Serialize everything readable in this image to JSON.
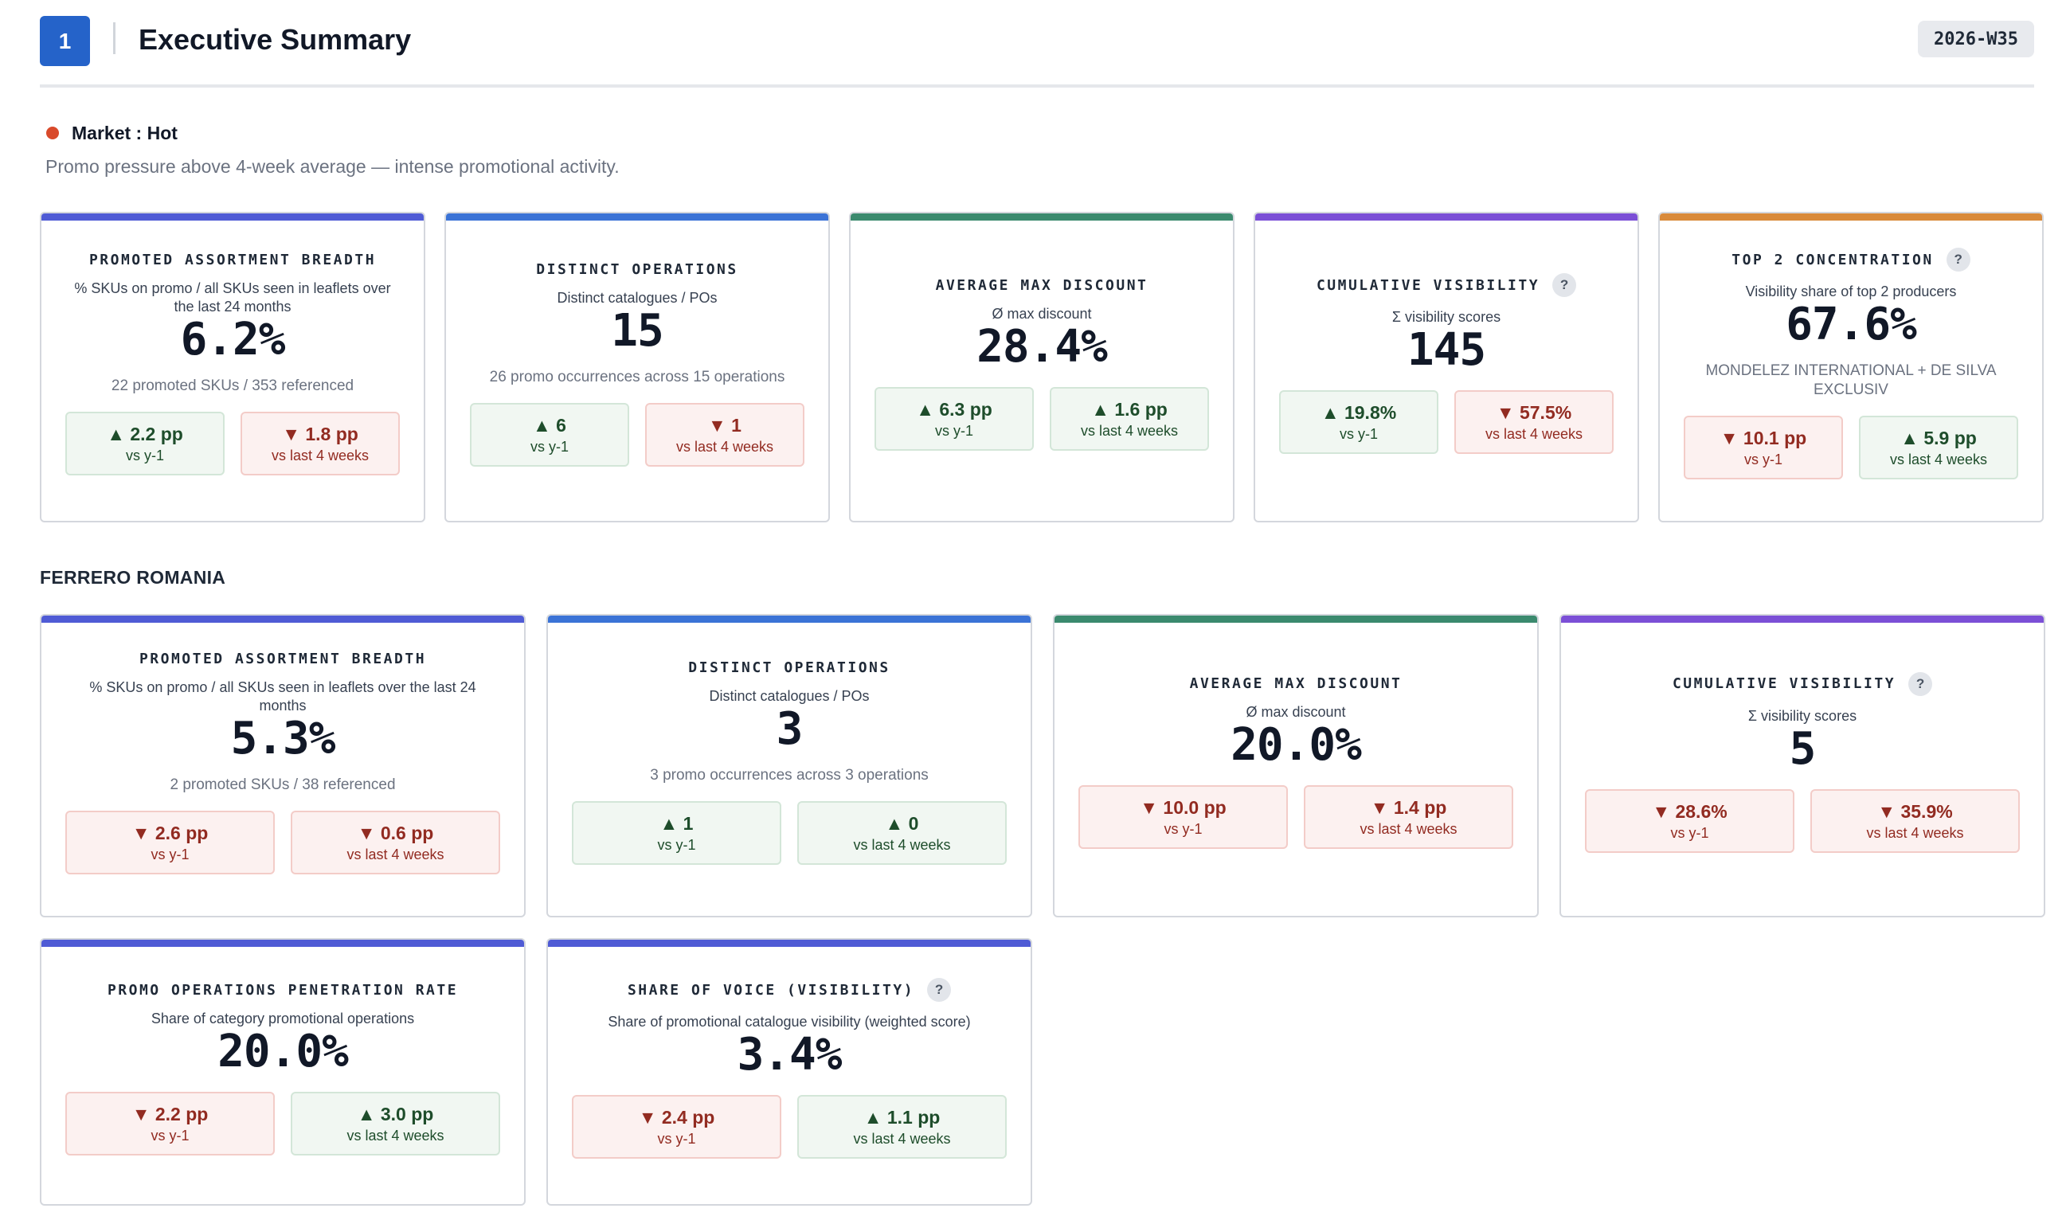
{
  "header": {
    "section_number": "1",
    "title": "Executive Summary",
    "week": "2026-W35"
  },
  "market": {
    "label": "Market : Hot",
    "status_color": "#d94a2b",
    "description": "Promo pressure above 4-week average — intense promotional activity."
  },
  "market_cards": [
    {
      "title": "PROMOTED ASSORTMENT BREADTH",
      "subtitle": "% SKUs on promo / all SKUs seen in leaflets over the last 24 months",
      "value": "6.2%",
      "note": "22 promoted SKUs / 353 referenced",
      "accent": "#4f5bd5",
      "deltas": [
        {
          "direction": "up",
          "value": "▲ 2.2 pp",
          "label": "vs y-1"
        },
        {
          "direction": "down",
          "value": "▼ 1.8 pp",
          "label": "vs last 4 weeks"
        }
      ]
    },
    {
      "title": "DISTINCT OPERATIONS",
      "subtitle": "Distinct catalogues / POs",
      "value": "15",
      "note": "26 promo occurrences across 15 operations",
      "accent": "#3b73d6",
      "deltas": [
        {
          "direction": "up",
          "value": "▲ 6",
          "label": "vs y-1"
        },
        {
          "direction": "down",
          "value": "▼ 1",
          "label": "vs last 4 weeks"
        }
      ]
    },
    {
      "title": "AVERAGE MAX DISCOUNT",
      "subtitle": "Ø max discount",
      "value": "28.4%",
      "note": "",
      "accent": "#3b8a6e",
      "deltas": [
        {
          "direction": "up",
          "value": "▲ 6.3 pp",
          "label": "vs y-1"
        },
        {
          "direction": "up",
          "value": "▲ 1.6 pp",
          "label": "vs last 4 weeks"
        }
      ]
    },
    {
      "title": "CUMULATIVE VISIBILITY",
      "help": "?",
      "subtitle": "Σ visibility scores",
      "value": "145",
      "note": "",
      "accent": "#7b4fd6",
      "deltas": [
        {
          "direction": "up",
          "value": "▲ 19.8%",
          "label": "vs y-1"
        },
        {
          "direction": "down",
          "value": "▼ 57.5%",
          "label": "vs last 4 weeks"
        }
      ]
    },
    {
      "title": "TOP 2 CONCENTRATION",
      "help": "?",
      "subtitle": "Visibility share of top 2 producers",
      "value": "67.6%",
      "note": "MONDELEZ INTERNATIONAL + DE SILVA EXCLUSIV",
      "accent": "#d98a3a",
      "deltas": [
        {
          "direction": "down",
          "value": "▼ 10.1 pp",
          "label": "vs y-1"
        },
        {
          "direction": "up",
          "value": "▲ 5.9 pp",
          "label": "vs last 4 weeks"
        }
      ]
    }
  ],
  "brand_section": {
    "title": "FERRERO ROMANIA"
  },
  "brand_cards": [
    {
      "title": "PROMOTED ASSORTMENT BREADTH",
      "subtitle": "% SKUs on promo / all SKUs seen in leaflets over the last 24 months",
      "value": "5.3%",
      "note": "2 promoted SKUs / 38 referenced",
      "accent": "#4f5bd5",
      "deltas": [
        {
          "direction": "down",
          "value": "▼ 2.6 pp",
          "label": "vs y-1"
        },
        {
          "direction": "down",
          "value": "▼ 0.6 pp",
          "label": "vs last 4 weeks"
        }
      ]
    },
    {
      "title": "DISTINCT OPERATIONS",
      "subtitle": "Distinct catalogues / POs",
      "value": "3",
      "note": "3 promo occurrences across 3 operations",
      "accent": "#3b73d6",
      "deltas": [
        {
          "direction": "up",
          "value": "▲ 1",
          "label": "vs y-1"
        },
        {
          "direction": "up",
          "value": "▲ 0",
          "label": "vs last 4 weeks"
        }
      ]
    },
    {
      "title": "AVERAGE MAX DISCOUNT",
      "subtitle": "Ø max discount",
      "value": "20.0%",
      "note": "",
      "accent": "#3b8a6e",
      "deltas": [
        {
          "direction": "down",
          "value": "▼ 10.0 pp",
          "label": "vs y-1"
        },
        {
          "direction": "down",
          "value": "▼ 1.4 pp",
          "label": "vs last 4 weeks"
        }
      ]
    },
    {
      "title": "CUMULATIVE VISIBILITY",
      "help": "?",
      "subtitle": "Σ visibility scores",
      "value": "5",
      "note": "",
      "accent": "#7b4fd6",
      "deltas": [
        {
          "direction": "down",
          "value": "▼ 28.6%",
          "label": "vs y-1"
        },
        {
          "direction": "down",
          "value": "▼ 35.9%",
          "label": "vs last 4 weeks"
        }
      ]
    },
    {
      "title": "PROMO OPERATIONS PENETRATION RATE",
      "subtitle": "Share of category promotional operations",
      "value": "20.0%",
      "note": "",
      "accent": "#4f5bd5",
      "deltas": [
        {
          "direction": "down",
          "value": "▼ 2.2 pp",
          "label": "vs y-1"
        },
        {
          "direction": "up",
          "value": "▲ 3.0 pp",
          "label": "vs last 4 weeks"
        }
      ]
    },
    {
      "title": "SHARE OF VOICE (VISIBILITY)",
      "help": "?",
      "subtitle": "Share of promotional catalogue visibility (weighted score)",
      "value": "3.4%",
      "note": "",
      "accent": "#4f5bd5",
      "deltas": [
        {
          "direction": "down",
          "value": "▼ 2.4 pp",
          "label": "vs y-1"
        },
        {
          "direction": "up",
          "value": "▲ 1.1 pp",
          "label": "vs last 4 weeks"
        }
      ]
    }
  ]
}
